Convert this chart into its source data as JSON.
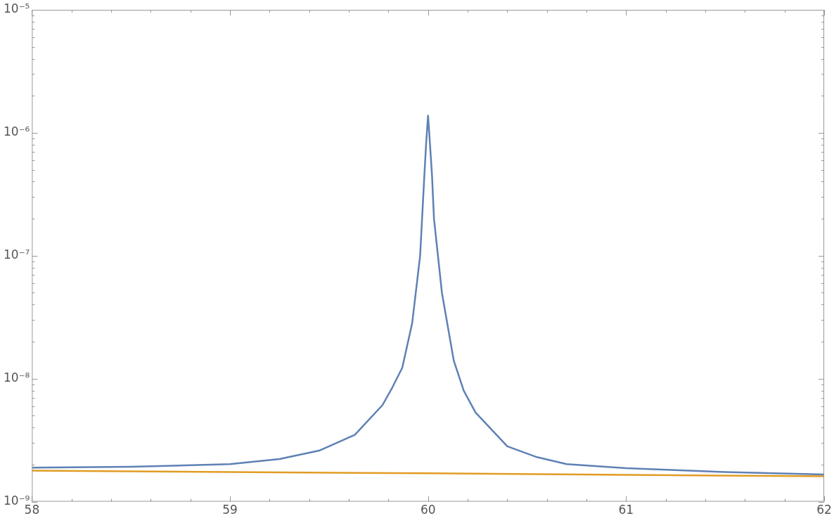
{
  "chart_data": {
    "type": "line",
    "log": "y",
    "marker": "none",
    "grid": false,
    "legend": false,
    "xlim": [
      58,
      62
    ],
    "ylim": [
      1e-09,
      1e-05
    ],
    "xticks": [
      58,
      {
        "value": 58.2,
        "label": null
      },
      {
        "value": 58.4,
        "label": null
      },
      {
        "value": 58.6,
        "label": null
      },
      {
        "value": 58.8,
        "label": null
      },
      59,
      {
        "value": 59.2,
        "label": null
      },
      {
        "value": 59.4,
        "label": null
      },
      {
        "value": 59.6,
        "label": null
      },
      {
        "value": 59.8,
        "label": null
      },
      60,
      {
        "value": 60.2,
        "label": null
      },
      {
        "value": 60.4,
        "label": null
      },
      {
        "value": 60.6,
        "label": null
      },
      {
        "value": 60.8,
        "label": null
      },
      61,
      {
        "value": 61.2,
        "label": null
      },
      {
        "value": 61.4,
        "label": null
      },
      {
        "value": 61.6,
        "label": null
      },
      {
        "value": 61.8,
        "label": null
      },
      62
    ],
    "yticks": [
      {
        "value": 1e-09,
        "label": "10⁻⁹"
      },
      {
        "value": 2e-09,
        "label": null
      },
      {
        "value": 3e-09,
        "label": null
      },
      {
        "value": 4e-09,
        "label": null
      },
      {
        "value": 5e-09,
        "label": null
      },
      {
        "value": 6e-09,
        "label": null
      },
      {
        "value": 7e-09,
        "label": null
      },
      {
        "value": 8e-09,
        "label": null
      },
      {
        "value": 9e-09,
        "label": null
      },
      {
        "value": 1e-08,
        "label": "10⁻⁸"
      },
      {
        "value": 2e-08,
        "label": null
      },
      {
        "value": 3e-08,
        "label": null
      },
      {
        "value": 4e-08,
        "label": null
      },
      {
        "value": 5e-08,
        "label": null
      },
      {
        "value": 6e-08,
        "label": null
      },
      {
        "value": 7e-08,
        "label": null
      },
      {
        "value": 8e-08,
        "label": null
      },
      {
        "value": 9e-08,
        "label": null
      },
      {
        "value": 1e-07,
        "label": "10⁻⁷"
      },
      {
        "value": 2e-07,
        "label": null
      },
      {
        "value": 3e-07,
        "label": null
      },
      {
        "value": 4e-07,
        "label": null
      },
      {
        "value": 5e-07,
        "label": null
      },
      {
        "value": 6e-07,
        "label": null
      },
      {
        "value": 7e-07,
        "label": null
      },
      {
        "value": 8e-07,
        "label": null
      },
      {
        "value": 9e-07,
        "label": null
      },
      {
        "value": 1e-06,
        "label": "10⁻⁶"
      },
      {
        "value": 2e-06,
        "label": null
      },
      {
        "value": 3e-06,
        "label": null
      },
      {
        "value": 4e-06,
        "label": null
      },
      {
        "value": 5e-06,
        "label": null
      },
      {
        "value": 6e-06,
        "label": null
      },
      {
        "value": 7e-06,
        "label": null
      },
      {
        "value": 8e-06,
        "label": null
      },
      {
        "value": 9e-06,
        "label": null
      },
      {
        "value": 1e-05,
        "label": "10⁻⁵"
      }
    ],
    "series": [
      {
        "color": "#5e81b5",
        "x": [
          58,
          58.5,
          59,
          59.25,
          59.45,
          59.63,
          59.77,
          59.82,
          59.87,
          59.92,
          59.96,
          59.98,
          59.99,
          60,
          60.01,
          60.02,
          60.03,
          60.07,
          60.13,
          60.18,
          60.24,
          60.4,
          60.55,
          60.7,
          61,
          61.5,
          62
        ],
        "values": [
          1.89e-09,
          1.92e-09,
          2.02e-09,
          2.22e-09,
          2.6e-09,
          3.49e-09,
          6.1e-09,
          8.5e-09,
          1.23e-08,
          2.84e-08,
          1e-07,
          4.1e-07,
          8e-07,
          1.38e-06,
          8e-07,
          4.5e-07,
          2e-07,
          5e-08,
          1.4e-08,
          8e-09,
          5.3e-09,
          2.82e-09,
          2.3e-09,
          2.02e-09,
          1.87e-09,
          1.74e-09,
          1.66e-09
        ]
      },
      {
        "color": "#e19c24",
        "x": [
          58,
          59,
          60,
          61,
          62
        ],
        "values": [
          1.79e-09,
          1.74e-09,
          1.7e-09,
          1.65e-09,
          1.61e-09
        ]
      }
    ]
  }
}
